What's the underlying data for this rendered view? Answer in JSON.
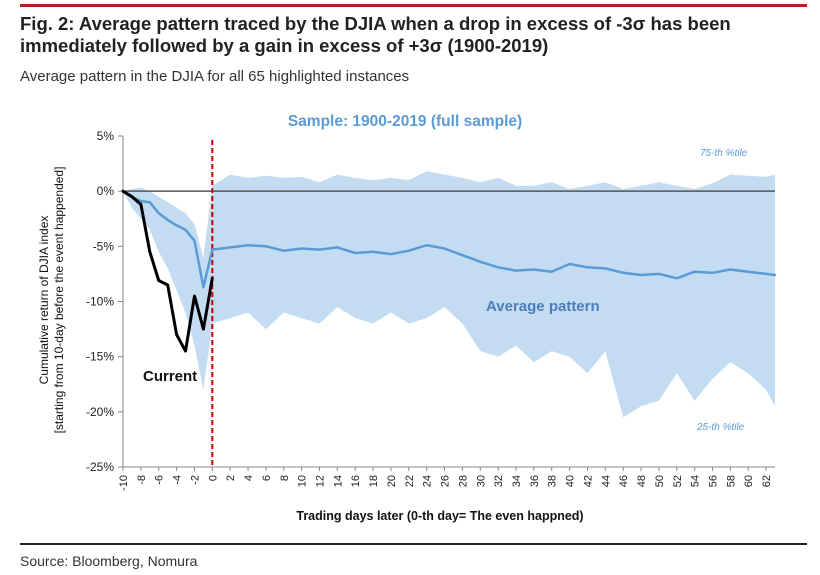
{
  "header": {
    "title": "Fig. 2: Average pattern traced by the DJIA when a drop in excess of -3σ has been immediately followed by a gain in excess of +3σ (1900-2019)",
    "subtitle": "Average pattern in the DJIA for all 65 highlighted instances"
  },
  "footer": {
    "source": "Source: Bloomberg, Nomura"
  },
  "colors": {
    "band": "#c3dcf2",
    "average": "#5b9bd5",
    "current": "#000000",
    "event_line": "#c00000",
    "zero_line": "#555555"
  },
  "chart_data": {
    "type": "area",
    "title": "Sample: 1900-2019 (full sample)",
    "xlabel": "Trading days later (0-th day= The even happned)",
    "ylabel_line1": "Cumulative return of DJIA index",
    "ylabel_line2": "[starting from 10-day before the event happended]",
    "xlim": [
      -10,
      63
    ],
    "ylim": [
      -25,
      5
    ],
    "y_ticks": [
      5,
      0,
      -5,
      -10,
      -15,
      -20,
      -25
    ],
    "y_tick_labels": [
      "5%",
      "0%",
      "-5%",
      "-10%",
      "-15%",
      "-20%",
      "-25%"
    ],
    "x_ticks": [
      -10,
      -8,
      -6,
      -4,
      -2,
      0,
      2,
      4,
      6,
      8,
      10,
      12,
      14,
      16,
      18,
      20,
      22,
      24,
      26,
      28,
      30,
      32,
      34,
      36,
      38,
      40,
      42,
      44,
      46,
      48,
      50,
      52,
      54,
      56,
      58,
      60,
      62
    ],
    "event_day": 0,
    "annotations": {
      "upper_band": "75-th %tile",
      "lower_band": "25-th %tile",
      "average": "Average pattern",
      "current": "Current"
    },
    "series": [
      {
        "name": "75-th %tile",
        "x": [
          -10,
          -9,
          -8,
          -7,
          -6,
          -5,
          -4,
          -3,
          -2,
          -1,
          0,
          2,
          4,
          6,
          8,
          10,
          12,
          14,
          16,
          18,
          20,
          22,
          24,
          26,
          28,
          30,
          32,
          34,
          36,
          38,
          40,
          42,
          44,
          46,
          48,
          50,
          52,
          54,
          56,
          58,
          60,
          62,
          63
        ],
        "values": [
          0,
          0.2,
          0.3,
          0,
          -0.5,
          -1,
          -1.5,
          -2,
          -3,
          -6,
          0.5,
          1.5,
          1.2,
          1.4,
          1.2,
          1.3,
          0.8,
          1.5,
          1.2,
          1,
          1.2,
          1,
          1.8,
          1.5,
          1.2,
          0.8,
          1.2,
          0.5,
          0.5,
          0.8,
          0.2,
          0.5,
          0.8,
          0.2,
          0.5,
          0.8,
          0.5,
          0.2,
          0.7,
          1.5,
          1.4,
          1.3,
          1.5
        ]
      },
      {
        "name": "Average pattern",
        "x": [
          -10,
          -9,
          -8,
          -7,
          -6,
          -5,
          -4,
          -3,
          -2,
          -1,
          0,
          2,
          4,
          6,
          8,
          10,
          12,
          14,
          16,
          18,
          20,
          22,
          24,
          26,
          28,
          30,
          32,
          34,
          36,
          38,
          40,
          42,
          44,
          46,
          48,
          50,
          52,
          54,
          56,
          58,
          60,
          62,
          63
        ],
        "values": [
          0,
          -0.5,
          -0.9,
          -1.0,
          -2.0,
          -2.6,
          -3.1,
          -3.5,
          -4.5,
          -8.7,
          -5.3,
          -5.1,
          -4.9,
          -5.0,
          -5.4,
          -5.2,
          -5.3,
          -5.1,
          -5.6,
          -5.5,
          -5.7,
          -5.4,
          -4.9,
          -5.2,
          -5.8,
          -6.4,
          -6.9,
          -7.2,
          -7.1,
          -7.3,
          -6.6,
          -6.9,
          -7.0,
          -7.4,
          -7.6,
          -7.5,
          -7.9,
          -7.3,
          -7.4,
          -7.1,
          -7.3,
          -7.5,
          -7.6
        ]
      },
      {
        "name": "25-th %tile",
        "x": [
          -10,
          -9,
          -8,
          -7,
          -6,
          -5,
          -4,
          -3,
          -2,
          -1,
          0,
          2,
          4,
          6,
          8,
          10,
          12,
          14,
          16,
          18,
          20,
          22,
          24,
          26,
          28,
          30,
          32,
          34,
          36,
          38,
          40,
          42,
          44,
          46,
          48,
          50,
          52,
          54,
          56,
          58,
          60,
          62,
          63
        ],
        "values": [
          0,
          -1.5,
          -2.5,
          -3.5,
          -5.5,
          -7,
          -9,
          -11,
          -14,
          -18,
          -12,
          -11.5,
          -11,
          -12.5,
          -11,
          -11.5,
          -12,
          -10.5,
          -11.5,
          -12,
          -11,
          -12,
          -11.5,
          -10.5,
          -12,
          -14.5,
          -15,
          -14,
          -15.5,
          -14.5,
          -15,
          -16.5,
          -14.5,
          -20.5,
          -19.5,
          -19,
          -16.5,
          -19,
          -17,
          -15.5,
          -16.5,
          -18,
          -19.5
        ]
      },
      {
        "name": "Current",
        "x": [
          -10,
          -9,
          -8,
          -7,
          -6,
          -5,
          -4,
          -3,
          -2,
          -1,
          0
        ],
        "values": [
          0,
          -0.5,
          -1.2,
          -5.5,
          -8.1,
          -8.5,
          -13.0,
          -14.5,
          -9.5,
          -12.5,
          -7.9
        ]
      }
    ]
  }
}
